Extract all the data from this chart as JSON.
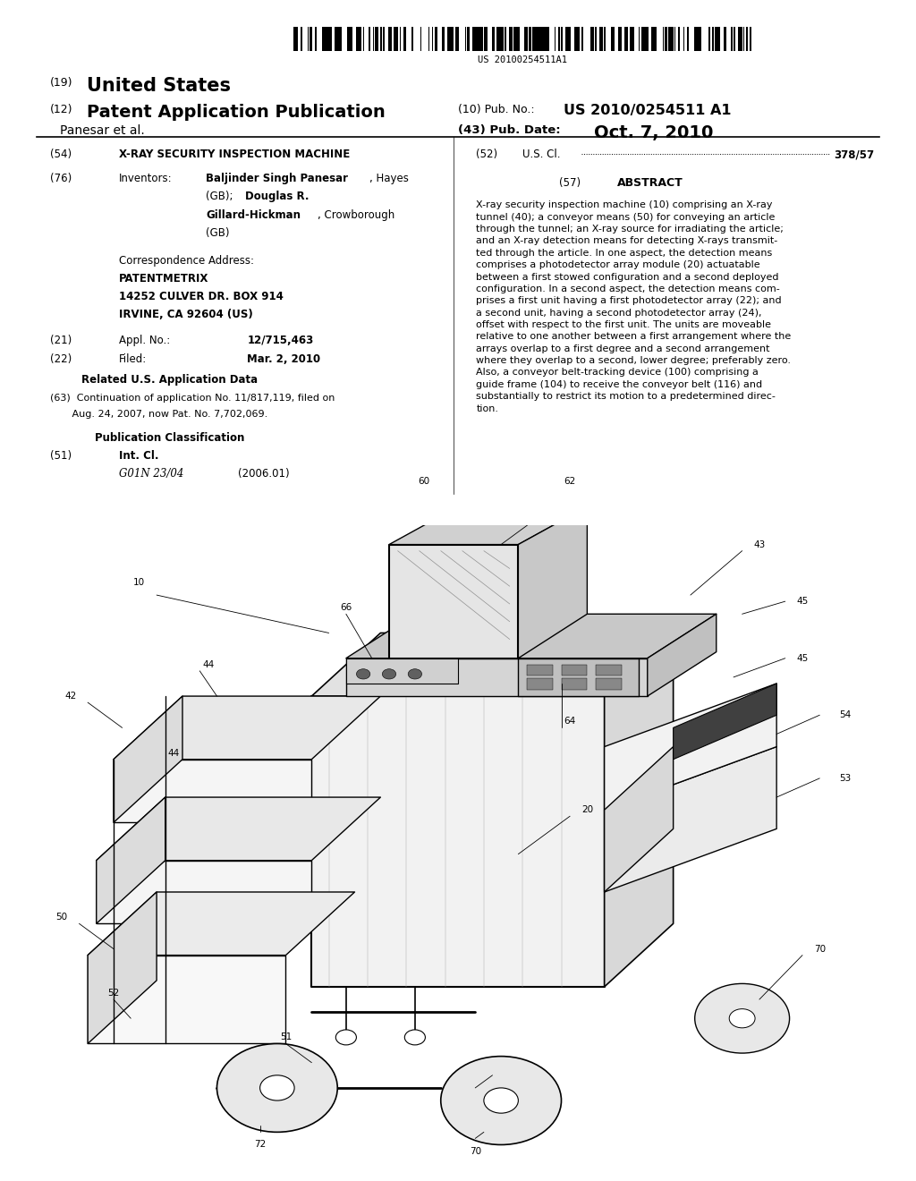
{
  "background_color": "#ffffff",
  "page_width": 10.24,
  "page_height": 13.2,
  "barcode_text": "US 20100254511A1",
  "pub_no_label": "(10) Pub. No.:",
  "pub_no": "US 2010/0254511 A1",
  "inventors_label": "Panesar et al.",
  "pub_date_label": "(43) Pub. Date:",
  "pub_date": "Oct. 7, 2010",
  "title_num": "(54)",
  "title": "X-RAY SECURITY INSPECTION MACHINE",
  "us_cl_num": "(52)",
  "us_cl_label": "U.S. Cl.",
  "us_cl_value": "378/57",
  "inventors_num": "(76)",
  "inventors_heading": "Inventors:",
  "abstract_num": "(57)",
  "abstract_heading": "ABSTRACT",
  "abstract_lines": [
    "X-ray security inspection machine (10) comprising an X-ray",
    "tunnel (40); a conveyor means (50) for conveying an article",
    "through the tunnel; an X-ray source for irradiating the article;",
    "and an X-ray detection means for detecting X-rays transmit-",
    "ted through the article. In one aspect, the detection means",
    "comprises a photodetector array module (20) actuatable",
    "between a first stowed configuration and a second deployed",
    "configuration. In a second aspect, the detection means com-",
    "prises a first unit having a first photodetector array (22); and",
    "a second unit, having a second photodetector array (24),",
    "offset with respect to the first unit. The units are moveable",
    "relative to one another between a first arrangement where the",
    "arrays overlap to a first degree and a second arrangement",
    "where they overlap to a second, lower degree; preferably zero.",
    "Also, a conveyor belt-tracking device (100) comprising a",
    "guide frame (104) to receive the conveyor belt (116) and",
    "substantially to restrict its motion to a predetermined direc-",
    "tion."
  ],
  "corr_heading": "Correspondence Address:",
  "corr_company": "PATENTMETRIX",
  "corr_addr1": "14252 CULVER DR. BOX 914",
  "corr_addr2": "IRVINE, CA 92604 (US)",
  "appl_num": "(21)",
  "appl_label": "Appl. No.:",
  "appl_value": "12/715,463",
  "filed_num": "(22)",
  "filed_label": "Filed:",
  "filed_value": "Mar. 2, 2010",
  "related_heading": "Related U.S. Application Data",
  "related_line1": "(63)  Continuation of application No. 11/817,119, filed on",
  "related_line2": "       Aug. 24, 2007, now Pat. No. 7,702,069.",
  "pub_class_heading": "Publication Classification",
  "int_cl_num": "(51)",
  "int_cl_label": "Int. Cl.",
  "int_cl_value": "G01N 23/04",
  "int_cl_year": "(2006.01)"
}
